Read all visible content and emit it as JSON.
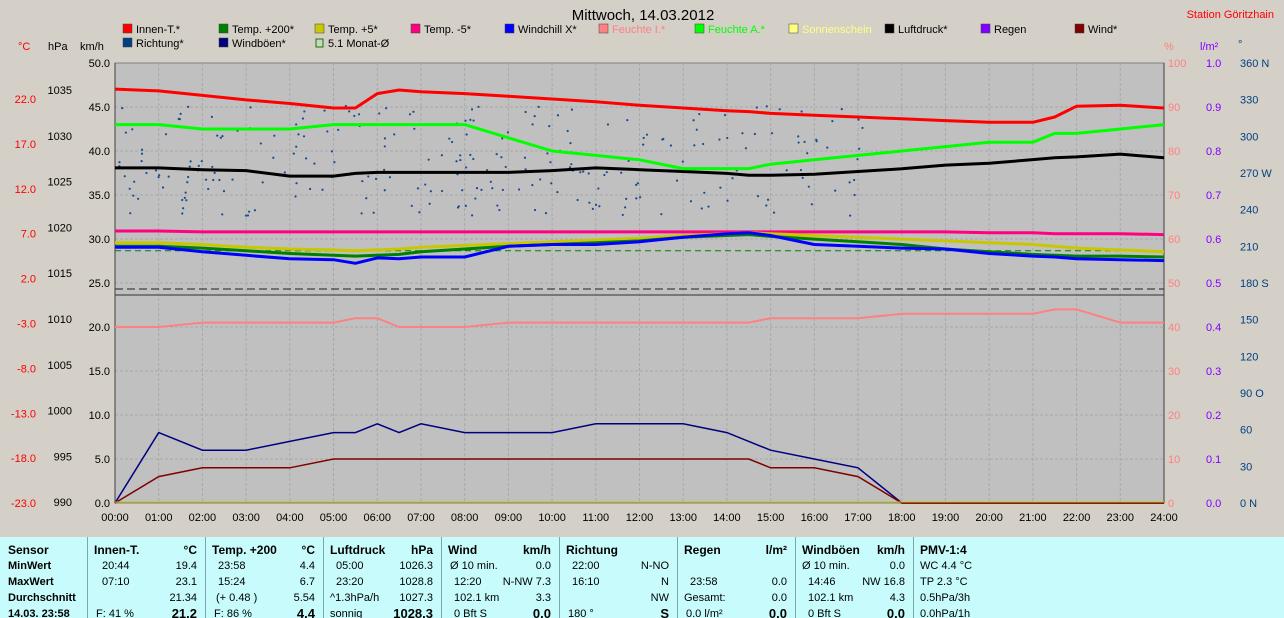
{
  "title": "Mittwoch, 14.03.2012",
  "station": "Station Göritzhain",
  "units_left": [
    "°C",
    "hPa",
    "km/h"
  ],
  "units_right": [
    "%",
    "l/m²",
    "°"
  ],
  "legend": [
    {
      "label": "Innen-T.*",
      "color": "#ff0000"
    },
    {
      "label": "Temp. +200*",
      "color": "#008000"
    },
    {
      "label": "Temp. +5*",
      "color": "#c8c800"
    },
    {
      "label": "Temp. -5*",
      "color": "#ff0080"
    },
    {
      "label": "Windchill X*",
      "color": "#0000ff"
    },
    {
      "label": "Feuchte I.*",
      "color": "#ff8080"
    },
    {
      "label": "Feuchte A.*",
      "color": "#00ff00"
    },
    {
      "label": "Sonnenschein",
      "color": "#ffff80"
    },
    {
      "label": "Luftdruck*",
      "color": "#000000"
    },
    {
      "label": "Regen",
      "color": "#8000ff"
    },
    {
      "label": "Wind*",
      "color": "#800000"
    },
    {
      "label": "Richtung*",
      "color": "#004080"
    },
    {
      "label": "Windböen*",
      "color": "#000080"
    },
    {
      "label": "5.1 Monat-Ø",
      "color": "#008000"
    }
  ],
  "chart_data": {
    "type": "line",
    "x_ticks": [
      "00:00",
      "01:00",
      "02:00",
      "03:00",
      "04:00",
      "05:00",
      "06:00",
      "07:00",
      "08:00",
      "09:00",
      "10:00",
      "11:00",
      "12:00",
      "13:00",
      "14:00",
      "15:00",
      "16:00",
      "17:00",
      "18:00",
      "19:00",
      "20:00",
      "21:00",
      "22:00",
      "23:00",
      "24:00"
    ],
    "axis_temp_c": [
      "22.0",
      "17.0",
      "12.0",
      "7.0",
      "2.0",
      "-3.0",
      "-8.0",
      "-13.0",
      "-18.0",
      "-23.0"
    ],
    "axis_hpa": [
      "1035",
      "1030",
      "1025",
      "1020",
      "1015",
      "1010",
      "1005",
      "1000",
      "995",
      "990"
    ],
    "axis_kmh": [
      "50.0",
      "45.0",
      "40.0",
      "35.0",
      "30.0",
      "25.0",
      "20.0",
      "15.0",
      "10.0",
      "5.0",
      "0.0"
    ],
    "axis_pct": [
      "100",
      "90",
      "80",
      "70",
      "60",
      "50",
      "40",
      "30",
      "20",
      "10",
      "0"
    ],
    "axis_rain": [
      "1.0",
      "0.9",
      "0.8",
      "0.7",
      "0.6",
      "0.5",
      "0.4",
      "0.3",
      "0.2",
      "0.1",
      "0.0"
    ],
    "axis_deg": [
      "360 N",
      "330",
      "300",
      "270 W",
      "240",
      "210",
      "180 S",
      "150",
      "120",
      "90 O",
      "60",
      "30",
      "0 N"
    ],
    "x": [
      0,
      1,
      2,
      3,
      4,
      5,
      5.5,
      6,
      6.5,
      7,
      8,
      9,
      10,
      11,
      12,
      13,
      14,
      14.5,
      15,
      16,
      17,
      18,
      19,
      20,
      21,
      21.5,
      22,
      23,
      24
    ],
    "series": [
      {
        "name": "Innen-T.*",
        "color": "#ff0000",
        "axis": "temp",
        "values": [
          23.1,
          22.9,
          22.4,
          21.9,
          21.5,
          21.0,
          21.0,
          22.6,
          23.0,
          22.8,
          22.6,
          22.3,
          22.0,
          21.7,
          21.3,
          21.0,
          20.7,
          20.6,
          20.4,
          20.2,
          20.0,
          19.8,
          19.6,
          19.4,
          19.4,
          20.0,
          21.2,
          21.3,
          21.0
        ]
      },
      {
        "name": "Luftdruck*",
        "color": "#000000",
        "axis": "hpa",
        "values": [
          1026.5,
          1026.5,
          1026.3,
          1026.2,
          1025.6,
          1025.6,
          1025.9,
          1026.0,
          1026.0,
          1026.0,
          1026.0,
          1026.0,
          1026.2,
          1026.5,
          1026.3,
          1026.1,
          1025.9,
          1025.7,
          1025.7,
          1025.8,
          1026.1,
          1026.4,
          1026.8,
          1027.0,
          1027.4,
          1027.6,
          1027.7,
          1028.0,
          1027.6
        ]
      },
      {
        "name": "Feuchte A.*",
        "color": "#00ff00",
        "axis": "pct",
        "values": [
          86,
          86,
          85,
          85,
          85,
          86,
          86,
          86,
          86,
          86,
          86,
          83,
          80,
          79,
          78,
          76,
          76,
          76,
          77,
          78,
          79,
          80,
          81,
          82,
          82,
          84,
          84,
          85,
          86
        ]
      },
      {
        "name": "Feuchte I.*",
        "color": "#ff8080",
        "axis": "pct",
        "values": [
          40,
          40,
          41,
          41,
          41,
          41,
          42,
          42,
          40,
          40,
          40,
          41,
          41,
          41,
          41,
          41,
          41,
          41,
          42,
          42,
          42,
          43,
          43,
          43,
          43,
          44,
          44,
          41,
          41
        ]
      },
      {
        "name": "Temp. -5*",
        "color": "#ff0080",
        "axis": "temp",
        "values": [
          7.3,
          7.3,
          7.2,
          7.2,
          7.2,
          7.2,
          7.2,
          7.2,
          7.2,
          7.2,
          7.2,
          7.2,
          7.2,
          7.2,
          7.2,
          7.2,
          7.2,
          7.2,
          7.2,
          7.2,
          7.2,
          7.2,
          7.2,
          7.1,
          7.1,
          7.0,
          7.0,
          7.0,
          6.9
        ]
      },
      {
        "name": "Temp. +5*",
        "color": "#c8c800",
        "axis": "temp",
        "values": [
          6.0,
          6.0,
          5.8,
          5.5,
          5.3,
          5.2,
          5.1,
          5.2,
          5.3,
          5.5,
          5.7,
          5.9,
          6.1,
          6.3,
          6.5,
          6.8,
          7.0,
          7.1,
          7.0,
          6.8,
          6.6,
          6.4,
          6.2,
          6.0,
          5.8,
          5.6,
          5.4,
          5.2,
          5.0
        ]
      },
      {
        "name": "Temp. +200*",
        "color": "#008000",
        "axis": "temp",
        "values": [
          5.6,
          5.6,
          5.4,
          5.1,
          4.8,
          4.6,
          4.5,
          4.6,
          4.7,
          5.0,
          5.3,
          5.6,
          5.8,
          6.0,
          6.2,
          6.6,
          6.8,
          6.9,
          6.7,
          6.4,
          6.1,
          5.8,
          5.3,
          5.0,
          4.7,
          4.6,
          4.5,
          4.5,
          4.4
        ]
      },
      {
        "name": "Windchill X*",
        "color": "#0000ff",
        "axis": "temp",
        "values": [
          5.5,
          5.5,
          5.0,
          4.6,
          4.2,
          4.1,
          3.7,
          4.3,
          4.2,
          4.4,
          4.4,
          5.6,
          5.8,
          5.8,
          6.1,
          6.6,
          7.0,
          7.1,
          6.8,
          5.8,
          5.6,
          5.4,
          5.3,
          4.8,
          4.5,
          4.4,
          4.2,
          4.1,
          4.0
        ]
      }
    ],
    "wind_gust_kmh": [
      0,
      8,
      6,
      6,
      7,
      8,
      8,
      9,
      8,
      9,
      8,
      8,
      8,
      9,
      9,
      9,
      8,
      7,
      6,
      5,
      4,
      0,
      0,
      0,
      0,
      0,
      0,
      0,
      0
    ],
    "wind_kmh": [
      0,
      3,
      4,
      4,
      4,
      5,
      5,
      5,
      5,
      5,
      5,
      5,
      5,
      5,
      5,
      5,
      5,
      5,
      4,
      4,
      3,
      0,
      0,
      0,
      0,
      0,
      0,
      0,
      0
    ],
    "direction_avg_deg": 280,
    "month_avg_c": 5.1
  },
  "panel": {
    "sensor": {
      "header": "Sensor",
      "rows": [
        "MinWert",
        "MaxWert",
        "Durchschnitt",
        "14.03. 23:58"
      ]
    },
    "innen": {
      "header": "Innen-T.",
      "unit": "°C",
      "rows": [
        [
          "20:44",
          "19.4"
        ],
        [
          "07:10",
          "23.1"
        ],
        [
          "",
          "21.34"
        ],
        [
          "F: 41 %",
          "21.2"
        ]
      ]
    },
    "temp200": {
      "header": "Temp. +200",
      "unit": "°C",
      "rows": [
        [
          "23:58",
          "4.4"
        ],
        [
          "15:24",
          "6.7"
        ],
        [
          "(+ 0.48 )",
          "5.54"
        ],
        [
          "F: 86 %",
          "4.4"
        ]
      ]
    },
    "luftdruck": {
      "header": "Luftdruck",
      "unit": "hPa",
      "rows": [
        [
          "05:00",
          "1026.3"
        ],
        [
          "23:20",
          "1028.8"
        ],
        [
          "^1.3hPa/h",
          "1027.3"
        ],
        [
          "sonnig",
          "1028.3"
        ]
      ]
    },
    "wind": {
      "header": "Wind",
      "unit": "km/h",
      "rows": [
        [
          "Ø 10 min.",
          "",
          "0.0"
        ],
        [
          "12:20",
          "N-NW 7.3",
          ""
        ],
        [
          "102.1 km",
          "",
          "3.3"
        ],
        [
          "0 Bft S",
          "",
          "0.0"
        ]
      ]
    },
    "richtung": {
      "header": "Richtung",
      "rows": [
        [
          "22:00",
          "N-NO"
        ],
        [
          "16:10",
          "N"
        ],
        [
          "",
          "NW"
        ],
        [
          "180 °",
          "S"
        ]
      ]
    },
    "regen": {
      "header": "Regen",
      "unit": "l/m²",
      "rows": [
        [
          "",
          ""
        ],
        [
          "23:58",
          "0.0"
        ],
        [
          "Gesamt:",
          "0.0"
        ],
        [
          "0.0 l/m²",
          "0.0"
        ]
      ]
    },
    "boeen": {
      "header": "Windböen",
      "unit": "km/h",
      "rows": [
        [
          "Ø 10 min.",
          "",
          "0.0"
        ],
        [
          "14:46",
          "NW 16.8",
          ""
        ],
        [
          "102.1 km",
          "",
          "4.3"
        ],
        [
          "0 Bft S",
          "",
          "0.0"
        ]
      ]
    },
    "pmv": {
      "header": "PMV-1:4",
      "rows": [
        "WC 4.4 °C",
        "TP 2.3 °C",
        "0.5hPa/3h",
        "0.0hPa/1h"
      ]
    }
  }
}
